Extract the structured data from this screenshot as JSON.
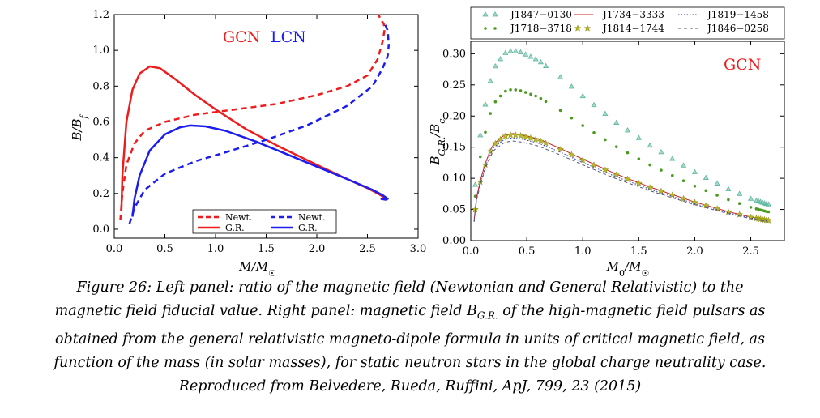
{
  "chart_data": [
    {
      "type": "line",
      "panel": "left",
      "xlabel": "M/M☉",
      "ylabel": "B/Bf",
      "xlim": [
        0,
        3.0
      ],
      "ylim": [
        -0.05,
        1.2
      ],
      "xticks": [
        "0.0",
        "0.5",
        "1.0",
        "1.5",
        "2.0",
        "2.5",
        "3.0"
      ],
      "yticks": [
        "0.0",
        "0.2",
        "0.4",
        "0.6",
        "0.8",
        "1.0",
        "1.2"
      ],
      "annotations": [
        {
          "text": "GCN",
          "color": "#ee1c1c"
        },
        {
          "text": "LCN",
          "color": "#1c1cee"
        }
      ],
      "legend_placement": "bottom-center",
      "legend": [
        {
          "label": "Newt.",
          "style": "dashed",
          "color": "#ee1c1c"
        },
        {
          "label": "Newt.",
          "style": "dashed",
          "color": "#1c1cee"
        },
        {
          "label": "G.R.",
          "style": "solid",
          "color": "#ee1c1c"
        },
        {
          "label": "G.R.",
          "style": "solid",
          "color": "#1c1cee"
        }
      ],
      "series": [
        {
          "color": "#ee1c1c",
          "style": "solid",
          "x": [
            0.07,
            0.08,
            0.12,
            0.18,
            0.25,
            0.35,
            0.45,
            0.6,
            0.8,
            1.0,
            1.3,
            1.6,
            2.0,
            2.3,
            2.5,
            2.6,
            2.66,
            2.68,
            2.63
          ],
          "y": [
            0.1,
            0.3,
            0.6,
            0.78,
            0.87,
            0.91,
            0.9,
            0.84,
            0.75,
            0.67,
            0.56,
            0.47,
            0.36,
            0.28,
            0.23,
            0.2,
            0.18,
            0.17,
            0.17
          ]
        },
        {
          "color": "#ee1c1c",
          "style": "dashed",
          "x": [
            0.06,
            0.08,
            0.12,
            0.2,
            0.3,
            0.5,
            0.8,
            1.2,
            1.6,
            2.0,
            2.3,
            2.5,
            2.6,
            2.65,
            2.67,
            2.66,
            2.63,
            2.61
          ],
          "y": [
            0.05,
            0.2,
            0.36,
            0.48,
            0.55,
            0.6,
            0.64,
            0.67,
            0.7,
            0.75,
            0.8,
            0.86,
            0.95,
            1.05,
            1.12,
            1.15,
            1.17,
            1.2
          ]
        },
        {
          "color": "#1c1cee",
          "style": "solid",
          "x": [
            0.18,
            0.2,
            0.25,
            0.35,
            0.5,
            0.65,
            0.75,
            0.9,
            1.1,
            1.4,
            1.7,
            2.0,
            2.3,
            2.55,
            2.65,
            2.7,
            2.68,
            2.63
          ],
          "y": [
            0.07,
            0.17,
            0.3,
            0.44,
            0.53,
            0.57,
            0.58,
            0.575,
            0.55,
            0.49,
            0.42,
            0.35,
            0.28,
            0.22,
            0.19,
            0.17,
            0.165,
            0.17
          ]
        },
        {
          "color": "#1c1cee",
          "style": "dashed",
          "x": [
            0.15,
            0.2,
            0.3,
            0.5,
            0.8,
            1.1,
            1.5,
            1.9,
            2.3,
            2.55,
            2.65,
            2.7,
            2.71,
            2.7,
            2.67
          ],
          "y": [
            0.03,
            0.12,
            0.22,
            0.31,
            0.38,
            0.43,
            0.5,
            0.58,
            0.69,
            0.8,
            0.9,
            0.97,
            1.03,
            1.11,
            1.15
          ]
        }
      ]
    },
    {
      "type": "scatter",
      "panel": "right",
      "xlabel": "M0/M☉",
      "ylabel": "BG.R./Bc",
      "xlim": [
        0,
        2.8
      ],
      "ylim": [
        0,
        0.32
      ],
      "xticks": [
        "0.0",
        "0.5",
        "1.0",
        "1.5",
        "2.0",
        "2.5"
      ],
      "yticks": [
        "0.00",
        "0.05",
        "0.10",
        "0.15",
        "0.20",
        "0.25",
        "0.30"
      ],
      "annotations": [
        {
          "text": "GCN",
          "color": "#ee1c1c"
        }
      ],
      "legend_placement": "top",
      "legend": [
        {
          "label": "J1847−0130",
          "marker": "triangle",
          "color": "#5fb8a0"
        },
        {
          "label": "J1734−3333",
          "marker": "line",
          "color": "#cc2222"
        },
        {
          "label": "J1819−1458",
          "marker": "dotted-line",
          "color": "#3344aa"
        },
        {
          "label": "J1718−3718",
          "marker": "dot",
          "color": "#4a9a22"
        },
        {
          "label": "J1814−1744",
          "marker": "star",
          "color": "#b8b822"
        },
        {
          "label": "J1846−0258",
          "marker": "dashed-line",
          "color": "#555577"
        }
      ],
      "series": [
        {
          "name": "J1847−0130",
          "marker": "triangle",
          "color": "#5fb8a0",
          "peak": 0.305
        },
        {
          "name": "J1718−3718",
          "marker": "dot",
          "color": "#4a9a22",
          "peak": 0.243
        },
        {
          "name": "J1734−3333",
          "marker": "line",
          "color": "#cc2222",
          "peak": 0.172
        },
        {
          "name": "J1814−1744",
          "marker": "star",
          "color": "#b8b822",
          "peak": 0.17
        },
        {
          "name": "J1819−1458",
          "marker": "dotted-line",
          "color": "#3344aa",
          "peak": 0.165
        },
        {
          "name": "J1846−0258",
          "marker": "dashed-line",
          "color": "#555577",
          "peak": 0.16
        }
      ]
    }
  ],
  "caption": {
    "lines": [
      "Figure 26: Left panel: ratio of the magnetic field (Newtonian and General Relativistic) to the",
      "magnetic field fiducial value. Right panel: magnetic field B",
      "obtained from the general relativistic magneto-dipole formula in units of critical magnetic field, as",
      "function of the mass (in solar masses), for static neutron stars in the global charge neutrality case.",
      "Reproduced from Belvedere, Rueda, Ruffini, ApJ, 799, 23 (2015)"
    ],
    "subscript": "G.R.",
    "line2_tail": " of the high-magnetic field pulsars as"
  }
}
